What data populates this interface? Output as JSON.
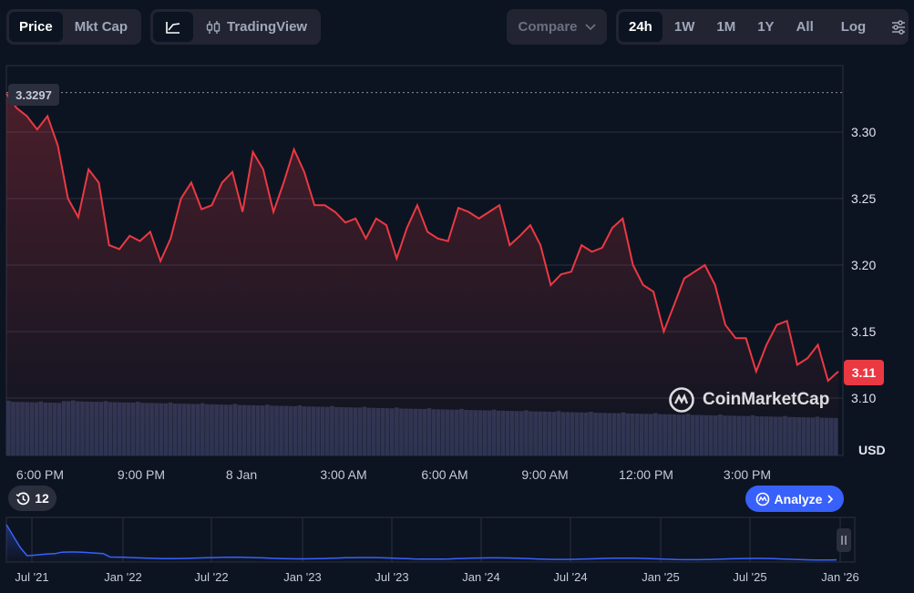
{
  "toolbar": {
    "price_tab": "Price",
    "mktcap_tab": "Mkt Cap",
    "tradingview_label": "TradingView",
    "compare_label": "Compare",
    "ranges": [
      "24h",
      "1W",
      "1M",
      "1Y",
      "All"
    ],
    "active_range": "24h",
    "log_label": "Log"
  },
  "chart_data": [
    {
      "type": "area",
      "title": "",
      "ylim": [
        3.09,
        3.345
      ],
      "y_ticks": [
        "3.30",
        "3.25",
        "3.20",
        "3.15",
        "3.10"
      ],
      "y_unit": "USD",
      "x_tick_labels": [
        "6:00 PM",
        "9:00 PM",
        "8 Jan",
        "3:00 AM",
        "6:00 AM",
        "9:00 AM",
        "12:00 PM",
        "3:00 PM"
      ],
      "reference_price": "3.3297",
      "current_price": "3.11",
      "line_color": "#ea3943",
      "x_hours": [
        0,
        0.3,
        0.6,
        0.9,
        1.2,
        1.5,
        1.8,
        2.1,
        2.4,
        2.7,
        3.0,
        3.3,
        3.6,
        3.9,
        4.2,
        4.5,
        4.8,
        5.1,
        5.4,
        5.7,
        6.0,
        6.3,
        6.6,
        6.9,
        7.2,
        7.5,
        7.8,
        8.1,
        8.4,
        8.7,
        9.0,
        9.3,
        9.6,
        9.9,
        10.2,
        10.5,
        10.8,
        11.1,
        11.4,
        11.7,
        12.0,
        12.3,
        12.6,
        12.9,
        13.2,
        13.5,
        13.8,
        14.1,
        14.4,
        14.7,
        15.0,
        15.3,
        15.6,
        15.9,
        16.2,
        16.5,
        16.8,
        17.1,
        17.4,
        17.7,
        18.0,
        18.3,
        18.6,
        18.9,
        19.2,
        19.5,
        19.8,
        20.1,
        20.4,
        20.7,
        21.0,
        21.3,
        21.6,
        21.9,
        22.2,
        22.5,
        22.8,
        23.1,
        23.4,
        23.7,
        24.0,
        24.3
      ],
      "price": [
        3.329,
        3.318,
        3.312,
        3.302,
        3.312,
        3.29,
        3.25,
        3.236,
        3.272,
        3.262,
        3.215,
        3.212,
        3.222,
        3.218,
        3.225,
        3.203,
        3.22,
        3.25,
        3.262,
        3.242,
        3.245,
        3.262,
        3.27,
        3.24,
        3.285,
        3.272,
        3.24,
        3.262,
        3.287,
        3.27,
        3.245,
        3.245,
        3.24,
        3.232,
        3.235,
        3.22,
        3.235,
        3.23,
        3.205,
        3.228,
        3.245,
        3.225,
        3.22,
        3.218,
        3.243,
        3.24,
        3.235,
        3.24,
        3.245,
        3.215,
        3.222,
        3.23,
        3.215,
        3.185,
        3.193,
        3.195,
        3.215,
        3.21,
        3.213,
        3.228,
        3.235,
        3.2,
        3.185,
        3.18,
        3.15,
        3.17,
        3.19,
        3.195,
        3.2,
        3.185,
        3.155,
        3.145,
        3.145,
        3.12,
        3.14,
        3.155,
        3.158,
        3.125,
        3.13,
        3.14,
        3.113,
        3.12
      ]
    },
    {
      "type": "area",
      "title": "",
      "x_tick_labels": [
        "Jul '21",
        "Jan '22",
        "Jul '22",
        "Jan '23",
        "Jul '23",
        "Jan '24",
        "Jul '24",
        "Jan '25",
        "Jul '25",
        "Jan '26"
      ],
      "line_color": "#3861fb"
    }
  ],
  "badges": {
    "reference": "3.3297",
    "current": "3.11"
  },
  "history_count": "12",
  "analyze_label": "Analyze",
  "watermark": "CoinMarketCap",
  "colors": {
    "background": "#0d1421",
    "down": "#ea3943",
    "accent": "#3861fb",
    "volume": "#2d3552"
  }
}
